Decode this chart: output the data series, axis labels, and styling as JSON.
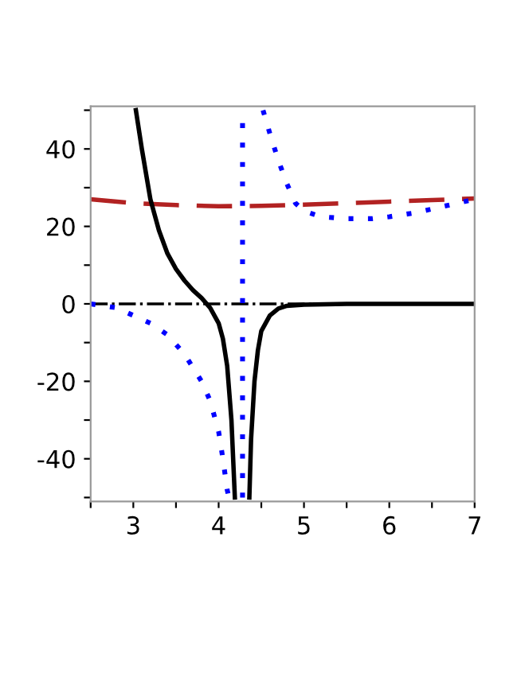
{
  "chart_data": {
    "type": "line",
    "xlim": [
      2.5,
      7
    ],
    "ylim": [
      -51,
      51
    ],
    "xticks": [
      {
        "value": 2.5,
        "label": null
      },
      3,
      {
        "value": 3.5,
        "label": null
      },
      4,
      {
        "value": 4.5,
        "label": null
      },
      5,
      {
        "value": 5.5,
        "label": null
      },
      6,
      {
        "value": 6.5,
        "label": null
      },
      7
    ],
    "yticks": [
      {
        "value": -50,
        "label": null
      },
      -40,
      {
        "value": -30,
        "label": null
      },
      -20,
      {
        "value": -10,
        "label": null
      },
      0,
      {
        "value": 10,
        "label": null
      },
      20,
      {
        "value": 30,
        "label": null
      },
      40,
      {
        "value": 50,
        "label": null
      }
    ],
    "grid": false,
    "legend": false,
    "marker": "none",
    "ref_lines": [
      {
        "axis": "y",
        "value": 0,
        "color": "#000000",
        "line_style": "dashdot"
      }
    ],
    "series": [
      {
        "color": "#b22222",
        "line_style": "dashed",
        "x": [
          2.5,
          3,
          3.5,
          4,
          4.5,
          5,
          5.5,
          6,
          6.5,
          7
        ],
        "values": [
          27,
          26,
          25.5,
          25.2,
          25.3,
          25.6,
          26,
          26.4,
          26.8,
          27.2
        ]
      },
      {
        "color": "#0000ff",
        "line_style": "dotted",
        "x": [
          2.5,
          2.8,
          3,
          3.2,
          3.4,
          3.6,
          3.8,
          3.9,
          4.0,
          4.05,
          4.1,
          4.12,
          4.2,
          4.28,
          4.28,
          4.4,
          4.52,
          4.6,
          4.7,
          4.8,
          4.9,
          5.0,
          5.2,
          5.5,
          5.8,
          6.0,
          6.3,
          6.6,
          7
        ],
        "values": [
          0,
          -1,
          -3,
          -5,
          -8,
          -13,
          -20,
          -25,
          -33,
          -40,
          -48,
          -50,
          null,
          -50,
          50,
          null,
          50,
          44,
          37,
          31,
          26,
          24,
          22.5,
          22,
          22,
          22.5,
          23.5,
          25,
          27
        ]
      },
      {
        "color": "#000000",
        "line_style": "solid",
        "x": [
          3.03,
          3.1,
          3.2,
          3.3,
          3.4,
          3.5,
          3.6,
          3.7,
          3.8,
          3.9,
          4.0,
          4.05,
          4.1,
          4.15,
          4.19,
          4.27,
          4.36,
          4.38,
          4.42,
          4.46,
          4.5,
          4.6,
          4.7,
          4.8,
          5,
          5.5,
          7
        ],
        "values": [
          50,
          40,
          27,
          19,
          13,
          9,
          6,
          3.5,
          1.5,
          -1,
          -5,
          -9,
          -16,
          -30,
          -50,
          null,
          -50,
          -35,
          -20,
          -12,
          -7,
          -3,
          -1.2,
          -0.5,
          -0.2,
          0,
          0
        ]
      }
    ]
  }
}
